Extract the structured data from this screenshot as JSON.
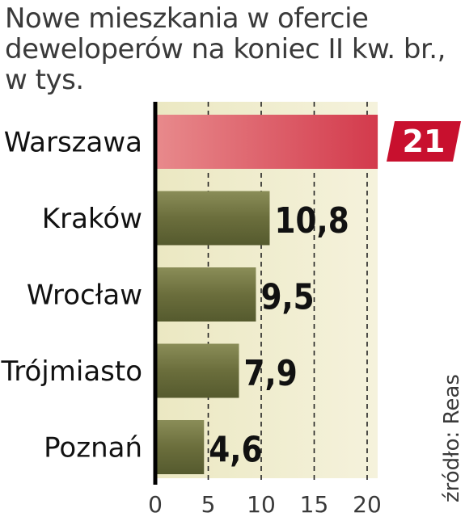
{
  "chart_data": {
    "type": "bar",
    "orientation": "horizontal",
    "title_lines": [
      "Nowe mieszkania w ofercie",
      "deweloperów na koniec II kw. br.,",
      "w tys."
    ],
    "categories": [
      "Warszawa",
      "Kraków",
      "Wrocław",
      "Trójmiasto",
      "Poznań"
    ],
    "values": [
      21,
      10.8,
      9.5,
      7.9,
      4.6
    ],
    "value_labels": [
      "21",
      "10,8",
      "9,5",
      "7,9",
      "4,6"
    ],
    "xticks": [
      "0",
      "5",
      "10",
      "15",
      "20"
    ],
    "xlim": [
      0,
      21
    ],
    "grid": true,
    "highlight_category": "Warszawa",
    "colors": {
      "highlight": "#d33a4c",
      "highlight_light": "#e88a8c",
      "bar": "#6b6e3c",
      "bar_dark": "#555a2e",
      "bar_light": "#8a8d58",
      "background_light": "#f5f2dc",
      "background_dark": "#ebe8c2",
      "badge": "#c8102e"
    },
    "source": "źródło: Reas"
  }
}
